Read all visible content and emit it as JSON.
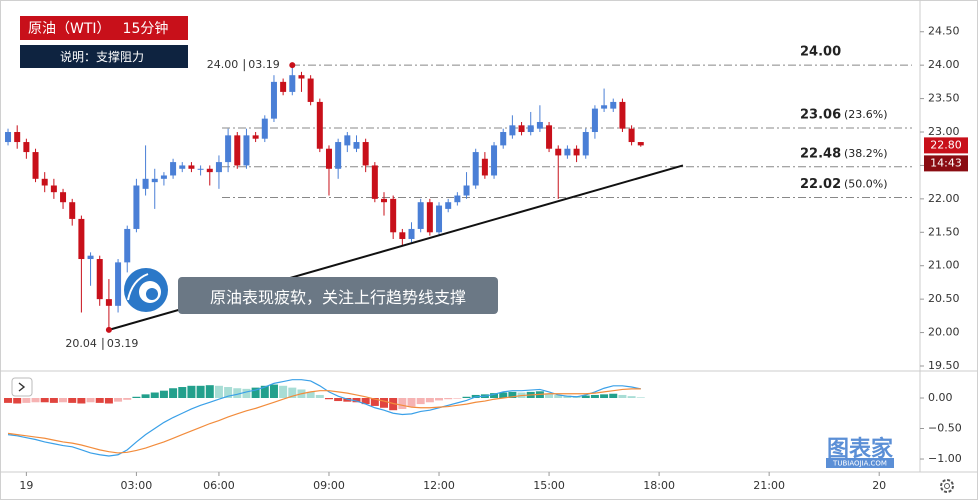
{
  "chart_data": [
    {
      "type": "candlestick",
      "title": "原油（WTI）",
      "interval": "15分钟",
      "subtitle": "说明：支撑阻力",
      "annotation": "原油表现疲软，关注上行趋势线支撑",
      "watermark": "图表家",
      "watermark_sub": "TUBIAOJIA.COM",
      "up_color": "#4a7fd6",
      "down_color": "#c8101a",
      "xlim": [
        -0.33,
        99.45
      ],
      "ylim": [
        19.44,
        24.9
      ],
      "xticks": [
        {
          "value": 2,
          "label": "19"
        },
        {
          "value": 14,
          "label": "03:00"
        },
        {
          "value": 23,
          "label": "06:00"
        },
        {
          "value": 35,
          "label": "09:00"
        },
        {
          "value": 47,
          "label": "12:00"
        },
        {
          "value": 59,
          "label": "15:00"
        },
        {
          "value": 71,
          "label": "18:00"
        },
        {
          "value": 83,
          "label": "21:00"
        },
        {
          "value": 95,
          "label": "20"
        }
      ],
      "yticks": [
        {
          "value": 24.5,
          "label": "24.50"
        },
        {
          "value": 24,
          "label": "24.00"
        },
        {
          "value": 23.5,
          "label": "23.50"
        },
        {
          "value": 23,
          "label": "23.00"
        },
        {
          "value": 22.5,
          "label": "22.50"
        },
        {
          "value": 22,
          "label": "22.00"
        },
        {
          "value": 21.5,
          "label": "21.50"
        },
        {
          "value": 21,
          "label": "21.00"
        },
        {
          "value": 20.5,
          "label": "20.50"
        },
        {
          "value": 20,
          "label": "20.00"
        },
        {
          "value": 19.5,
          "label": "19.50"
        }
      ],
      "open": [
        22.85,
        23.0,
        22.85,
        22.7,
        22.3,
        22.2,
        22.1,
        21.95,
        21.7,
        21.1,
        21.1,
        20.5,
        20.4,
        21.05,
        21.55,
        22.15,
        22.25,
        22.3,
        22.35,
        22.45,
        22.5,
        22.45,
        22.45,
        22.4,
        22.55,
        22.95,
        22.5,
        22.95,
        22.9,
        23.2,
        23.75,
        23.6,
        23.85,
        23.8,
        23.45,
        22.75,
        22.45,
        22.8,
        22.75,
        22.85,
        22.5,
        22.0,
        22.0,
        21.5,
        21.4,
        21.55,
        21.95,
        21.5,
        21.85,
        21.95,
        22.05,
        22.2,
        22.6,
        22.35,
        22.8,
        22.95,
        23.1,
        23.0,
        23.05,
        23.1,
        22.75,
        22.65,
        22.75,
        22.65,
        23.0,
        23.35,
        23.35,
        23.45,
        23.05,
        22.85
      ],
      "high": [
        23.05,
        23.1,
        22.9,
        22.75,
        22.4,
        22.3,
        22.15,
        22.0,
        21.75,
        21.2,
        21.15,
        20.8,
        21.1,
        21.6,
        22.3,
        22.8,
        22.45,
        22.4,
        22.6,
        22.55,
        22.55,
        22.5,
        22.5,
        22.65,
        23.05,
        23.0,
        23.05,
        23.0,
        23.25,
        23.85,
        23.8,
        24.0,
        23.9,
        23.85,
        23.5,
        22.8,
        22.9,
        23.0,
        22.95,
        22.9,
        22.55,
        22.1,
        22.05,
        21.55,
        21.65,
        22.0,
        22.0,
        21.95,
        22.0,
        22.1,
        22.4,
        22.75,
        22.7,
        22.85,
        23.05,
        23.25,
        23.15,
        23.3,
        23.4,
        23.15,
        22.8,
        22.8,
        22.8,
        23.05,
        23.4,
        23.65,
        23.5,
        23.5,
        23.1,
        22.85
      ],
      "low": [
        22.8,
        22.75,
        22.6,
        22.25,
        22.1,
        22.0,
        21.85,
        21.6,
        20.3,
        20.7,
        20.4,
        20.04,
        20.3,
        20.9,
        21.5,
        22.05,
        21.85,
        22.2,
        22.3,
        22.4,
        22.4,
        22.35,
        22.2,
        22.15,
        22.4,
        22.45,
        22.45,
        22.85,
        22.85,
        23.15,
        23.55,
        23.55,
        23.6,
        23.4,
        22.7,
        22.05,
        22.3,
        22.7,
        22.7,
        22.4,
        21.95,
        21.75,
        21.4,
        21.3,
        21.35,
        21.5,
        21.45,
        21.45,
        21.8,
        21.9,
        22.0,
        22.15,
        22.3,
        22.3,
        22.75,
        22.9,
        22.95,
        22.95,
        23.0,
        22.7,
        22.0,
        22.6,
        22.55,
        22.6,
        22.9,
        23.3,
        23.3,
        23.0,
        22.8,
        22.78
      ],
      "close": [
        23.0,
        22.85,
        22.7,
        22.3,
        22.2,
        22.1,
        21.95,
        21.7,
        21.1,
        21.15,
        20.5,
        20.4,
        21.05,
        21.55,
        22.2,
        22.3,
        22.3,
        22.35,
        22.55,
        22.5,
        22.45,
        22.45,
        22.4,
        22.55,
        22.95,
        22.5,
        22.95,
        22.9,
        23.2,
        23.75,
        23.6,
        23.85,
        23.8,
        23.45,
        22.75,
        22.45,
        22.85,
        22.95,
        22.85,
        22.5,
        22.0,
        21.95,
        21.5,
        21.4,
        21.55,
        21.95,
        21.5,
        21.9,
        21.95,
        22.05,
        22.2,
        22.7,
        22.35,
        22.8,
        23.0,
        23.1,
        23.0,
        23.1,
        23.15,
        22.75,
        22.65,
        22.75,
        22.65,
        23.0,
        23.35,
        23.4,
        23.45,
        23.05,
        22.85,
        22.8
      ],
      "levels": [
        {
          "value": 24.0,
          "label": "24.00"
        },
        {
          "value": 23.06,
          "label": "23.06",
          "ratio_label": "(23.6%)"
        },
        {
          "value": 22.48,
          "label": "22.48",
          "ratio_label": "(38.2%)"
        },
        {
          "value": 22.02,
          "label": "22.02",
          "ratio_label": "(50.0%)"
        }
      ],
      "point_labels": [
        {
          "x": 31,
          "value": 24.0,
          "label": "24.00",
          "date": "03.19"
        },
        {
          "x": 11,
          "value": 20.04,
          "label": "20.04",
          "date": "03.19"
        }
      ],
      "trendline": {
        "x": [
          11,
          73.6
        ],
        "values": [
          20.04,
          22.5
        ]
      },
      "last_price": {
        "value": 22.8,
        "label": "22.80"
      },
      "countdown": "14:43"
    },
    {
      "type": "macd",
      "xlim": [
        -0.33,
        99.45
      ],
      "ylim": [
        -1.18,
        0.377
      ],
      "yticks": [
        {
          "value": 0,
          "label": "0.00"
        },
        {
          "value": -0.5,
          "label": "−0.50"
        },
        {
          "value": -1,
          "label": "−1.00"
        }
      ],
      "histogram_colors": {
        "up_strong": "#22a08c",
        "up_weak": "#a8ddd5",
        "down_strong": "#e0443e",
        "down_weak": "#f6b3b3"
      },
      "histogram": [
        -0.08,
        -0.09,
        -0.08,
        -0.07,
        -0.07,
        -0.08,
        -0.07,
        -0.08,
        -0.09,
        -0.07,
        -0.08,
        -0.09,
        -0.06,
        -0.03,
        0.02,
        0.06,
        0.09,
        0.12,
        0.16,
        0.18,
        0.2,
        0.2,
        0.21,
        0.2,
        0.18,
        0.16,
        0.15,
        0.17,
        0.2,
        0.22,
        0.2,
        0.17,
        0.14,
        0.1,
        0.05,
        -0.02,
        -0.05,
        -0.06,
        -0.07,
        -0.1,
        -0.13,
        -0.16,
        -0.2,
        -0.18,
        -0.14,
        -0.1,
        -0.07,
        -0.04,
        -0.02,
        -0.01,
        0.02,
        0.05,
        0.06,
        0.08,
        0.09,
        0.1,
        0.09,
        0.1,
        0.11,
        0.07,
        0.05,
        0.04,
        0.03,
        0.04,
        0.05,
        0.06,
        0.07,
        0.05,
        0.03,
        0.01
      ],
      "series": [
        {
          "color": "#3aa0e8",
          "values": [
            -0.6,
            -0.62,
            -0.65,
            -0.68,
            -0.72,
            -0.75,
            -0.78,
            -0.8,
            -0.85,
            -0.9,
            -0.93,
            -0.95,
            -0.93,
            -0.85,
            -0.72,
            -0.6,
            -0.5,
            -0.4,
            -0.32,
            -0.25,
            -0.18,
            -0.12,
            -0.07,
            -0.02,
            0.03,
            0.06,
            0.1,
            0.13,
            0.18,
            0.24,
            0.27,
            0.3,
            0.3,
            0.28,
            0.2,
            0.1,
            0.03,
            -0.02,
            -0.05,
            -0.1,
            -0.16,
            -0.2,
            -0.25,
            -0.27,
            -0.26,
            -0.22,
            -0.2,
            -0.16,
            -0.12,
            -0.08,
            -0.04,
            0.02,
            0.03,
            0.06,
            0.1,
            0.12,
            0.12,
            0.13,
            0.14,
            0.1,
            0.05,
            0.03,
            0.02,
            0.05,
            0.1,
            0.16,
            0.2,
            0.2,
            0.18,
            0.15
          ]
        },
        {
          "color": "#f28c3c",
          "values": [
            -0.58,
            -0.6,
            -0.62,
            -0.64,
            -0.66,
            -0.69,
            -0.72,
            -0.74,
            -0.77,
            -0.81,
            -0.85,
            -0.88,
            -0.9,
            -0.89,
            -0.86,
            -0.82,
            -0.77,
            -0.72,
            -0.66,
            -0.6,
            -0.54,
            -0.48,
            -0.42,
            -0.37,
            -0.31,
            -0.26,
            -0.21,
            -0.17,
            -0.12,
            -0.07,
            -0.02,
            0.03,
            0.07,
            0.1,
            0.12,
            0.12,
            0.1,
            0.08,
            0.05,
            0.02,
            -0.02,
            -0.05,
            -0.09,
            -0.12,
            -0.15,
            -0.16,
            -0.16,
            -0.15,
            -0.14,
            -0.12,
            -0.1,
            -0.07,
            -0.05,
            -0.02,
            0,
            0.02,
            0.04,
            0.05,
            0.06,
            0.07,
            0.07,
            0.07,
            0.07,
            0.07,
            0.08,
            0.1,
            0.12,
            0.14,
            0.15,
            0.15
          ]
        }
      ]
    }
  ]
}
